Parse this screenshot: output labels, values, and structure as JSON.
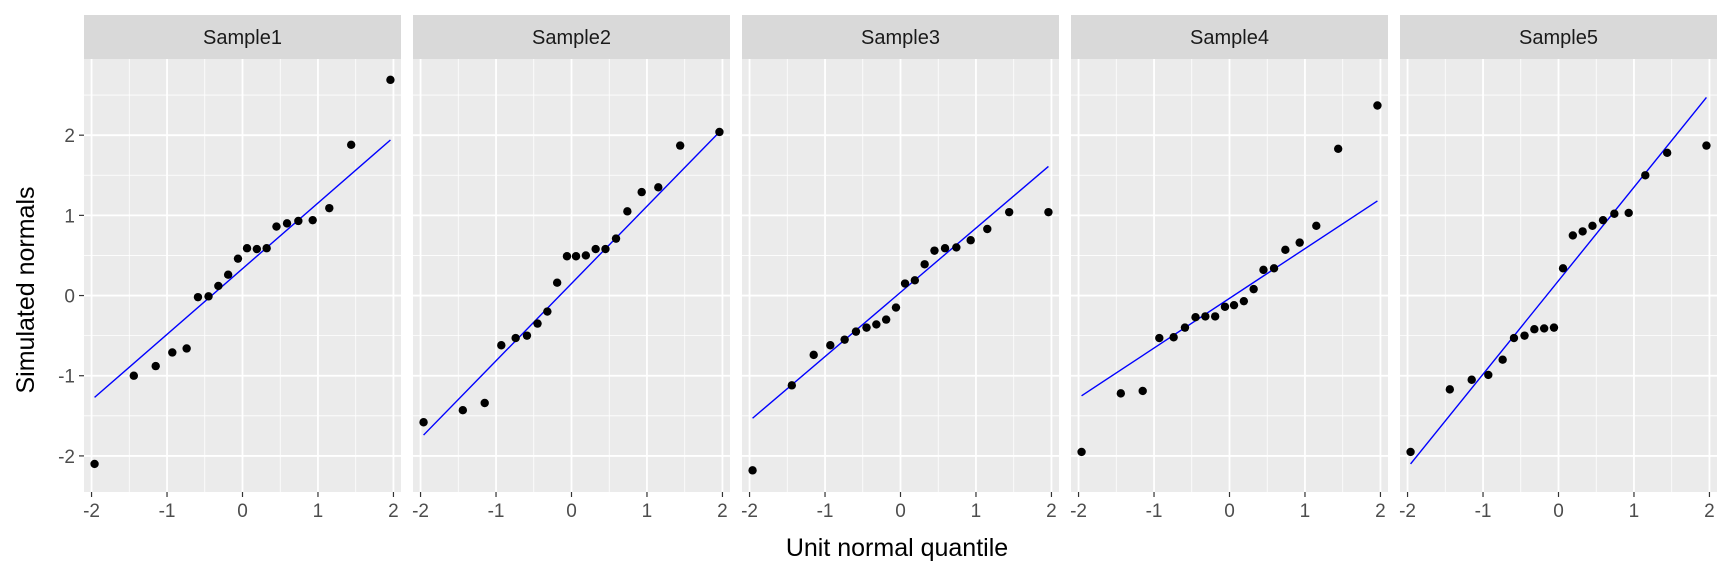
{
  "chart_data": {
    "type": "scatter",
    "xlabel": "Unit normal quantile",
    "ylabel": "Simulated normals",
    "xlim": [
      -2.1,
      2.1
    ],
    "ylim": [
      -2.45,
      2.95
    ],
    "x_ticks": [
      -2,
      -1,
      0,
      1,
      2
    ],
    "x_tick_labels": [
      "-2",
      "-1",
      "0",
      "1",
      "2"
    ],
    "y_ticks": [
      -2,
      -1,
      0,
      1,
      2
    ],
    "y_tick_labels": [
      "-2",
      "-1",
      "0",
      "1",
      "2"
    ],
    "grid": true,
    "legend": "none",
    "colors": {
      "panel_bg": "#ebebeb",
      "strip_bg": "#d9d9d9",
      "grid": "#ffffff",
      "points": "#000000",
      "line": "#0000ff"
    },
    "quantiles": [
      -1.96,
      -1.44,
      -1.15,
      -0.93,
      -0.74,
      -0.59,
      -0.45,
      -0.32,
      -0.19,
      -0.06,
      0.06,
      0.19,
      0.32,
      0.45,
      0.59,
      0.74,
      0.93,
      1.15,
      1.44,
      1.96
    ],
    "panels": [
      {
        "name": "Sample1",
        "y": [
          -2.1,
          -1.0,
          -0.88,
          -0.71,
          -0.66,
          -0.02,
          -0.01,
          0.12,
          0.26,
          0.46,
          0.59,
          0.58,
          0.59,
          0.86,
          0.9,
          0.93,
          0.94,
          1.09,
          1.88,
          2.69
        ],
        "line": [
          [
            -1.96,
            -1.27
          ],
          [
            1.96,
            1.94
          ]
        ]
      },
      {
        "name": "Sample2",
        "y": [
          -1.58,
          -1.43,
          -1.34,
          -0.62,
          -0.53,
          -0.5,
          -0.35,
          -0.2,
          0.16,
          0.49,
          0.49,
          0.5,
          0.58,
          0.58,
          0.71,
          1.05,
          1.29,
          1.35,
          1.87,
          2.04
        ],
        "line": [
          [
            -1.96,
            -1.74
          ],
          [
            1.96,
            2.04
          ]
        ]
      },
      {
        "name": "Sample3",
        "y": [
          -2.18,
          -1.12,
          -0.74,
          -0.62,
          -0.55,
          -0.45,
          -0.4,
          -0.36,
          -0.3,
          -0.15,
          0.15,
          0.19,
          0.39,
          0.56,
          0.59,
          0.6,
          0.69,
          0.83,
          1.04,
          1.04
        ],
        "line": [
          [
            -1.96,
            -1.53
          ],
          [
            1.96,
            1.61
          ]
        ]
      },
      {
        "name": "Sample4",
        "y": [
          -1.95,
          -1.22,
          -1.19,
          -0.53,
          -0.52,
          -0.4,
          -0.27,
          -0.26,
          -0.26,
          -0.14,
          -0.12,
          -0.07,
          0.08,
          0.32,
          0.34,
          0.57,
          0.66,
          0.87,
          1.83,
          2.37
        ],
        "line": [
          [
            -1.96,
            -1.25
          ],
          [
            1.96,
            1.18
          ]
        ]
      },
      {
        "name": "Sample5",
        "y": [
          -1.95,
          -1.17,
          -1.05,
          -0.99,
          -0.8,
          -0.53,
          -0.5,
          -0.42,
          -0.41,
          -0.4,
          0.34,
          0.75,
          0.8,
          0.87,
          0.94,
          1.02,
          1.03,
          1.5,
          1.78,
          1.87
        ],
        "line": [
          [
            -1.96,
            -2.1
          ],
          [
            1.96,
            2.47
          ]
        ]
      }
    ]
  }
}
